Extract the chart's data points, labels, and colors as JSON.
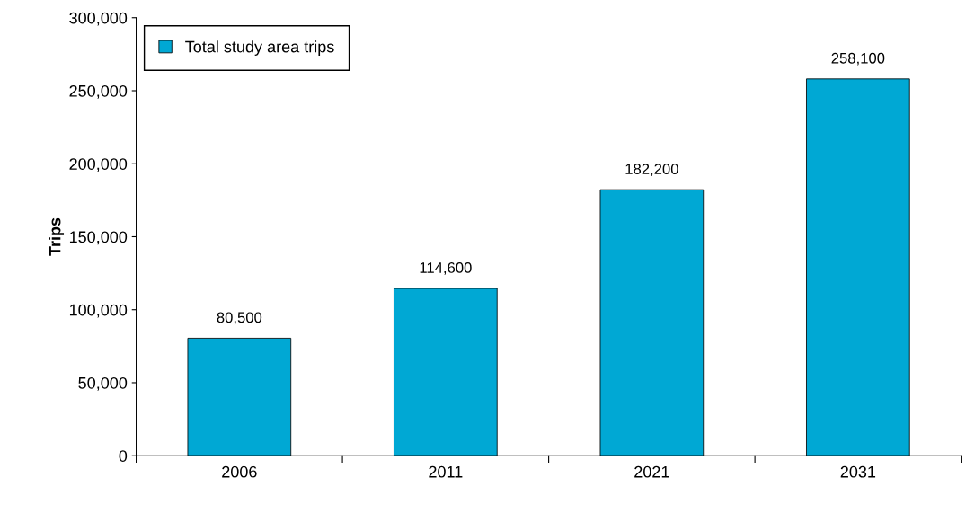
{
  "chart_data": {
    "type": "bar",
    "ylabel": "Trips",
    "categories": [
      "2006",
      "2011",
      "2021",
      "2031"
    ],
    "series": [
      {
        "name": "Total study area trips",
        "color": "#00a8d4",
        "values": [
          80500,
          114600,
          182200,
          258100
        ],
        "value_labels": [
          "80,500",
          "114,600",
          "182,200",
          "258,100"
        ]
      }
    ],
    "ylim": [
      0,
      300000
    ],
    "yticks": [
      {
        "value": 0,
        "label": "0"
      },
      {
        "value": 50000,
        "label": "50,000"
      },
      {
        "value": 100000,
        "label": "100,000"
      },
      {
        "value": 150000,
        "label": "150,000"
      },
      {
        "value": 200000,
        "label": "200,000"
      },
      {
        "value": 250000,
        "label": "250,000"
      },
      {
        "value": 300000,
        "label": "300,000"
      }
    ],
    "grid": false,
    "legend": "top left"
  }
}
